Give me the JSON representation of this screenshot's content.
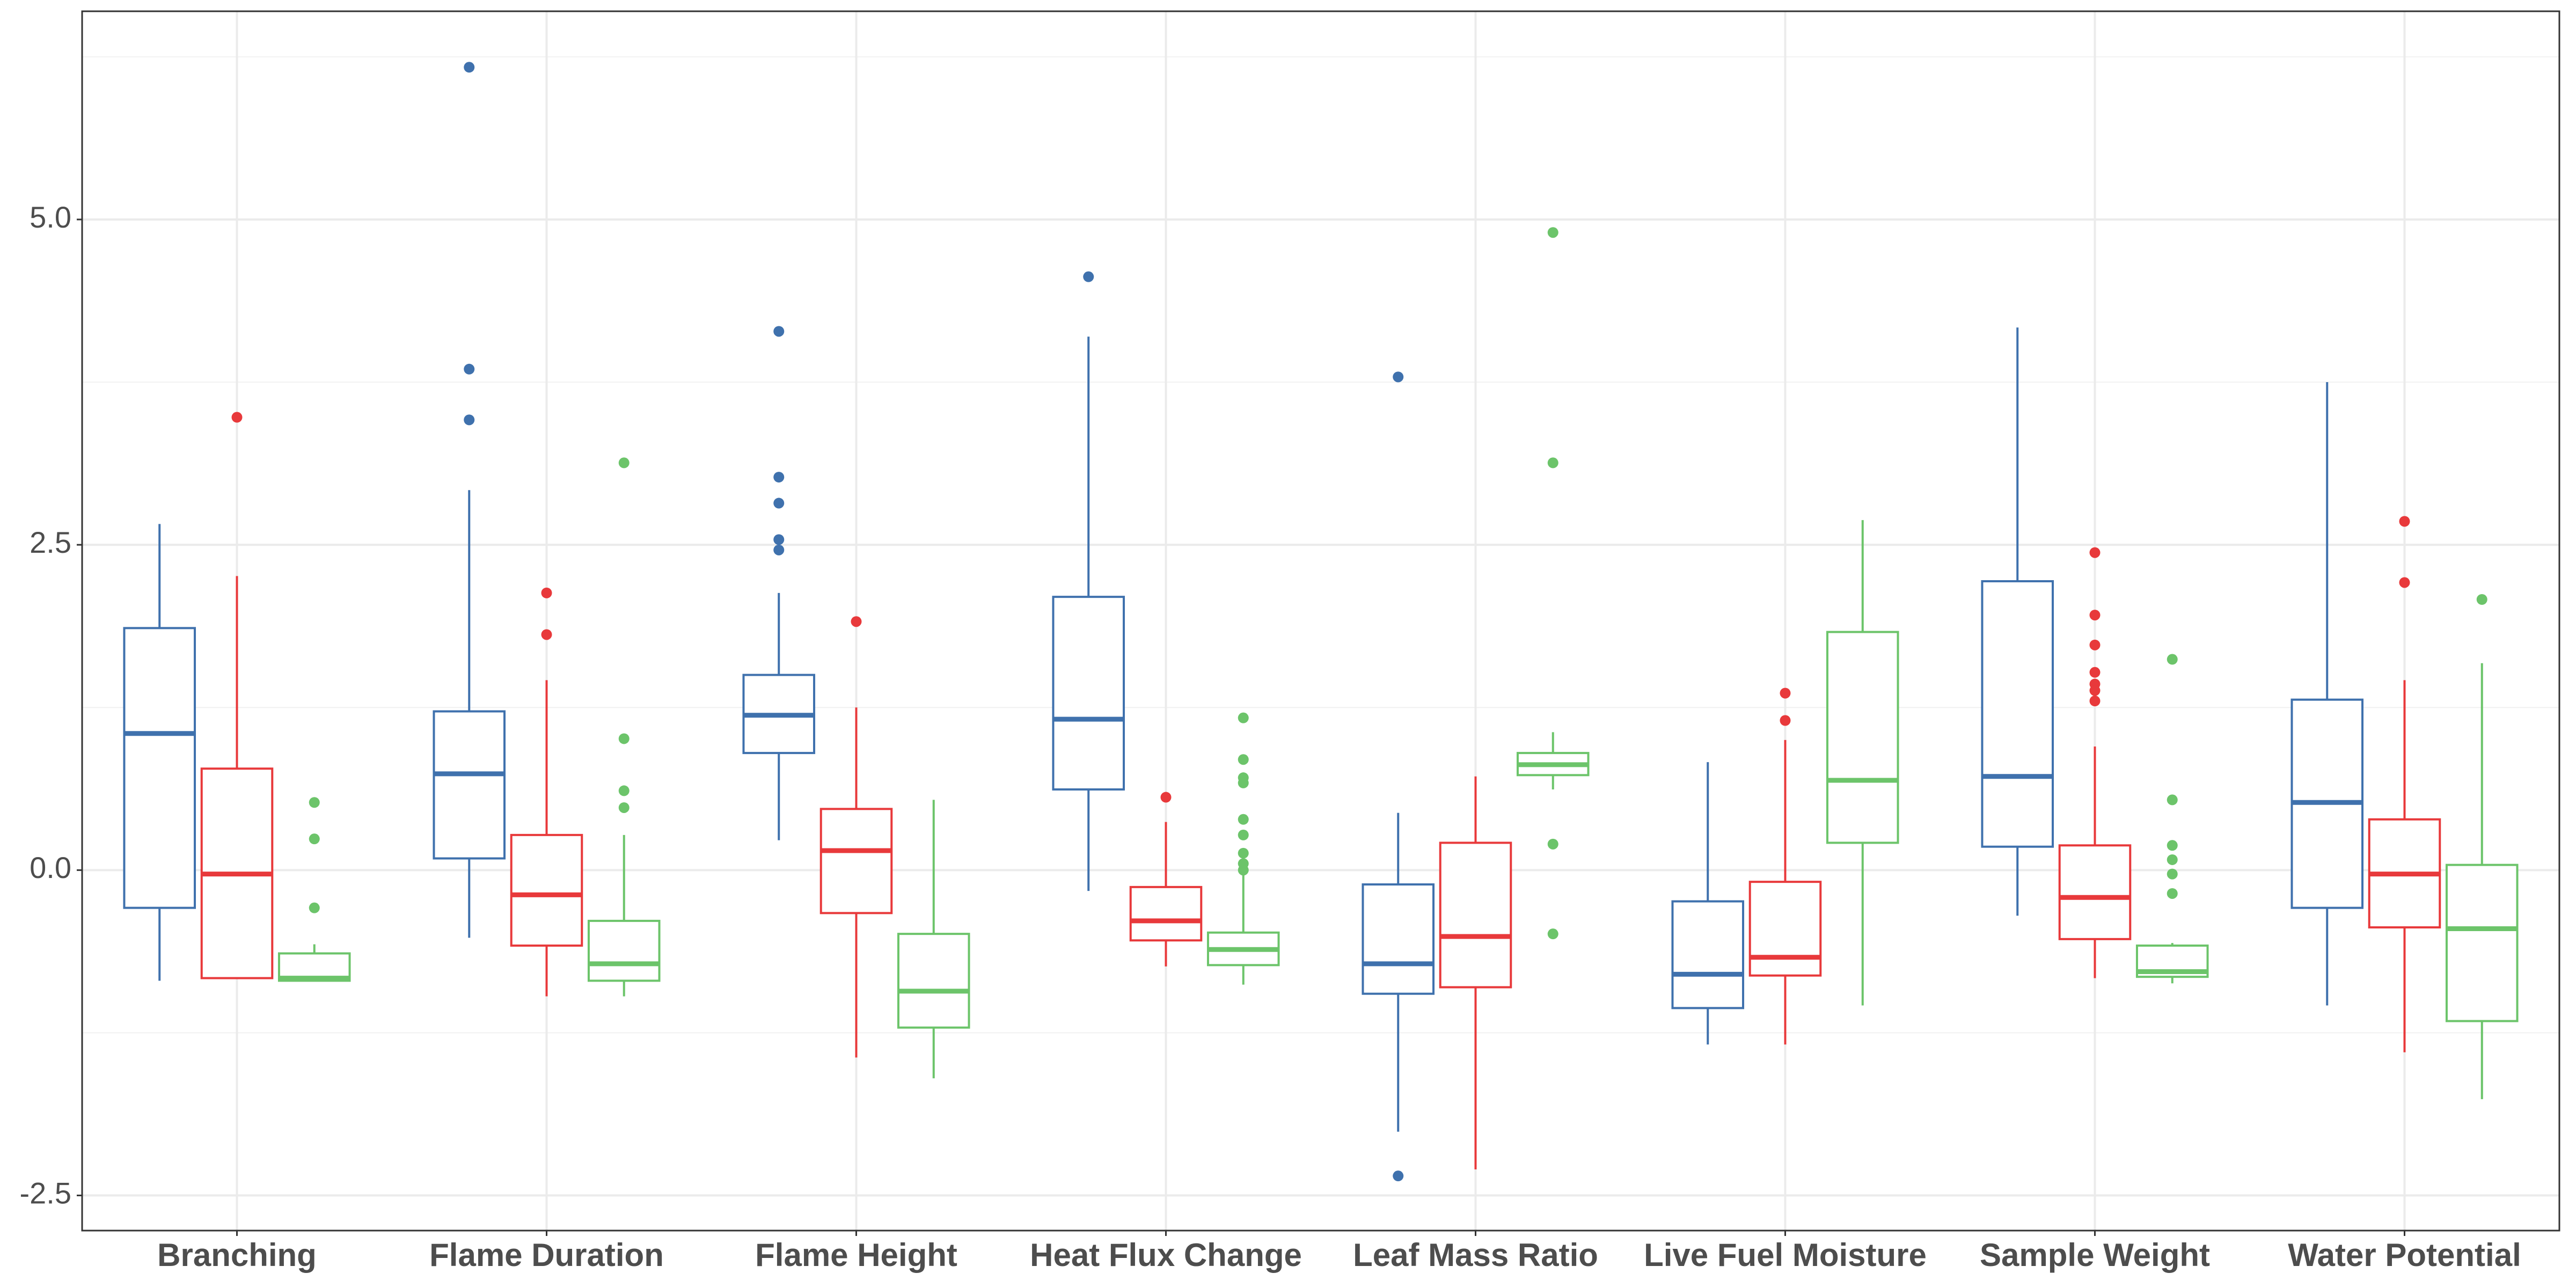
{
  "chart_data": {
    "type": "box",
    "categories": [
      "Branching",
      "Flame Duration",
      "Flame Height",
      "Heat Flux Change",
      "Leaf Mass Ratio",
      "Live Fuel Moisture",
      "Sample Weight",
      "Water Potential"
    ],
    "ylim": [
      -2.77,
      6.6
    ],
    "yticks": [
      -2.5,
      {
        "value": 0,
        "label": "0.0"
      },
      2.5,
      {
        "value": 5,
        "label": "5.0"
      }
    ],
    "grid": true,
    "minor_grid": true,
    "series": [
      {
        "color": "#3f71ad",
        "boxes": [
          {
            "low": -0.85,
            "q1": -0.29,
            "median": 1.05,
            "q3": 1.86,
            "high": 2.66,
            "outliers": []
          },
          {
            "low": -0.52,
            "q1": 0.09,
            "median": 0.74,
            "q3": 1.22,
            "high": 2.92,
            "outliers": [
              6.17,
              3.85,
              3.46
            ]
          },
          {
            "low": 0.23,
            "q1": 0.9,
            "median": 1.19,
            "q3": 1.5,
            "high": 2.13,
            "outliers": [
              4.14,
              3.02,
              2.82,
              2.54,
              2.46
            ]
          },
          {
            "low": -0.16,
            "q1": 0.62,
            "median": 1.16,
            "q3": 2.1,
            "high": 4.1,
            "outliers": [
              4.56
            ]
          },
          {
            "low": -2.01,
            "q1": -0.95,
            "median": -0.72,
            "q3": -0.11,
            "high": 0.44,
            "outliers": [
              3.79,
              -2.35
            ]
          },
          {
            "low": -1.34,
            "q1": -1.06,
            "median": -0.8,
            "q3": -0.24,
            "high": 0.83,
            "outliers": []
          },
          {
            "low": -0.35,
            "q1": 0.18,
            "median": 0.72,
            "q3": 2.22,
            "high": 4.17,
            "outliers": []
          },
          {
            "low": -1.04,
            "q1": -0.29,
            "median": 0.52,
            "q3": 1.31,
            "high": 3.75,
            "outliers": []
          }
        ]
      },
      {
        "color": "#e8393b",
        "boxes": [
          {
            "low": -0.83,
            "q1": -0.83,
            "median": -0.03,
            "q3": 0.78,
            "high": 2.26,
            "outliers": [
              3.48
            ]
          },
          {
            "low": -0.97,
            "q1": -0.58,
            "median": -0.19,
            "q3": 0.27,
            "high": 1.46,
            "outliers": [
              2.13,
              1.81
            ]
          },
          {
            "low": -1.44,
            "q1": -0.33,
            "median": 0.15,
            "q3": 0.47,
            "high": 1.25,
            "outliers": [
              1.91
            ]
          },
          {
            "low": -0.74,
            "q1": -0.54,
            "median": -0.39,
            "q3": -0.13,
            "high": 0.37,
            "outliers": [
              0.56
            ]
          },
          {
            "low": -2.3,
            "q1": -0.9,
            "median": -0.51,
            "q3": 0.21,
            "high": 0.72,
            "outliers": []
          },
          {
            "low": -1.34,
            "q1": -0.81,
            "median": -0.67,
            "q3": -0.09,
            "high": 1.0,
            "outliers": [
              1.36,
              1.15
            ]
          },
          {
            "low": -0.83,
            "q1": -0.53,
            "median": -0.21,
            "q3": 0.19,
            "high": 0.95,
            "outliers": [
              2.44,
              1.96,
              1.73,
              1.52,
              1.43,
              1.38,
              1.3
            ]
          },
          {
            "low": -1.4,
            "q1": -0.44,
            "median": -0.03,
            "q3": 0.39,
            "high": 1.46,
            "outliers": [
              2.68,
              2.21
            ]
          }
        ]
      },
      {
        "color": "#6cc46a",
        "boxes": [
          {
            "low": -0.85,
            "q1": -0.85,
            "median": -0.83,
            "q3": -0.64,
            "high": -0.57,
            "outliers": [
              0.52,
              0.24,
              -0.29
            ]
          },
          {
            "low": -0.97,
            "q1": -0.85,
            "median": -0.72,
            "q3": -0.39,
            "high": 0.27,
            "outliers": [
              3.13,
              1.01,
              0.61,
              0.48
            ]
          },
          {
            "low": -1.6,
            "q1": -1.21,
            "median": -0.93,
            "q3": -0.49,
            "high": 0.54,
            "outliers": []
          },
          {
            "low": -0.88,
            "q1": -0.73,
            "median": -0.61,
            "q3": -0.48,
            "high": -0.04,
            "outliers": [
              1.17,
              0.85,
              0.71,
              0.67,
              0.39,
              0.27,
              0.13,
              0.05,
              0.0
            ]
          },
          {
            "low": 0.62,
            "q1": 0.73,
            "median": 0.81,
            "q3": 0.9,
            "high": 1.06,
            "outliers": [
              4.9,
              3.13,
              0.2,
              -0.49
            ]
          },
          {
            "low": -1.04,
            "q1": 0.21,
            "median": 0.69,
            "q3": 1.83,
            "high": 2.69,
            "outliers": []
          },
          {
            "low": -0.87,
            "q1": -0.82,
            "median": -0.78,
            "q3": -0.58,
            "high": -0.56,
            "outliers": [
              1.62,
              0.54,
              0.19,
              0.08,
              -0.03,
              -0.18
            ]
          },
          {
            "low": -1.76,
            "q1": -1.16,
            "median": -0.45,
            "q3": 0.04,
            "high": 1.59,
            "outliers": [
              2.08
            ]
          }
        ]
      }
    ]
  }
}
